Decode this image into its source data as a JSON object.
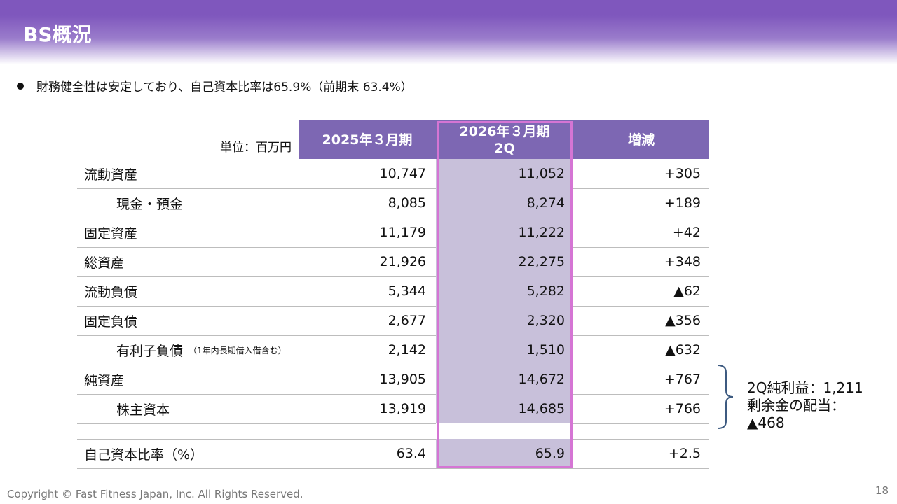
{
  "slide": {
    "title": "BS概況",
    "bullet": "財務健全性は安定しており、自己資本比率は65.9%（前期末  63.4%）",
    "footer": "Copyright © Fast Fitness Japan, Inc. All Rights Reserved.",
    "page_number": "18"
  },
  "table": {
    "unit_label": "単位：百万円",
    "headers": [
      "2025年３月期",
      "2026年３月期\n2Q",
      "増減"
    ],
    "rows": [
      {
        "label": "流動資産",
        "sub": "",
        "v1": "10,747",
        "v2": "11,052",
        "diff": "+305"
      },
      {
        "label": "現金・預金",
        "sub": "",
        "v1": "8,085",
        "v2": "8,274",
        "diff": "+189"
      },
      {
        "label": "固定資産",
        "sub": "",
        "v1": "11,179",
        "v2": "11,222",
        "diff": "+42"
      },
      {
        "label": "総資産",
        "sub": "",
        "v1": "21,926",
        "v2": "22,275",
        "diff": "+348"
      },
      {
        "label": "流動負債",
        "sub": "",
        "v1": "5,344",
        "v2": "5,282",
        "diff": "▲62"
      },
      {
        "label": "固定負債",
        "sub": "",
        "v1": "2,677",
        "v2": "2,320",
        "diff": "▲356"
      },
      {
        "label": "有利子負債",
        "sub": "（1年内長期借入借含む）",
        "v1": "2,142",
        "v2": "1,510",
        "diff": "▲632"
      },
      {
        "label": "純資産",
        "sub": "",
        "v1": "13,905",
        "v2": "14,672",
        "diff": "+767"
      },
      {
        "label": "株主資本",
        "sub": "",
        "v1": "13,919",
        "v2": "14,685",
        "diff": "+766"
      },
      {
        "label": "自己資本比率（%）",
        "sub": "",
        "v1": "63.4",
        "v2": "65.9",
        "diff": "+2.5"
      }
    ]
  },
  "note": {
    "line1": "2Q純利益：1,211",
    "line2": "剰余金の配当：",
    "line3": "▲468"
  }
}
